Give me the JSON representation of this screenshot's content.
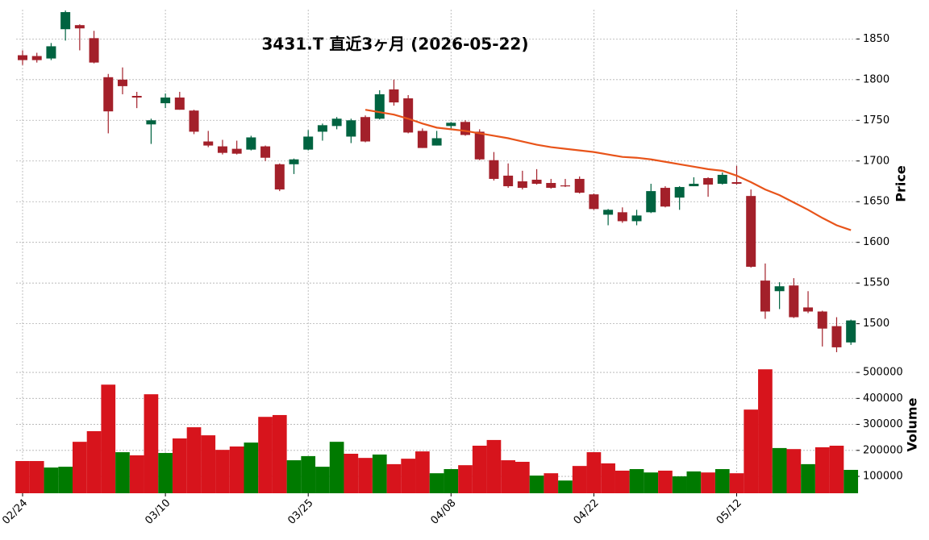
{
  "chart_data": {
    "type": "candlestick",
    "title": "3431.T  直近3ヶ月  (2026-05-22)",
    "categories": [
      "02/24",
      null,
      null,
      null,
      null,
      null,
      null,
      null,
      null,
      null,
      "03/10",
      null,
      null,
      null,
      null,
      null,
      null,
      null,
      null,
      null,
      "03/25",
      null,
      null,
      null,
      null,
      null,
      null,
      null,
      null,
      null,
      "04/08",
      null,
      null,
      null,
      null,
      null,
      null,
      null,
      null,
      null,
      "04/22",
      null,
      null,
      null,
      null,
      null,
      null,
      null,
      null,
      null,
      "05/12",
      null,
      null,
      null,
      null,
      null,
      null,
      null,
      null
    ],
    "open": [
      1830,
      1829,
      1826,
      1862,
      1867,
      1851,
      1803,
      1800,
      1780,
      1745,
      1771,
      1778,
      1762,
      1724,
      1718,
      1715,
      1714,
      1718,
      1696,
      1696,
      1714,
      1736,
      1743,
      1730,
      1754,
      1752,
      1788,
      1777,
      1737,
      1719,
      1743,
      1748,
      1736,
      1701,
      1682,
      1675,
      1677,
      1673,
      1670,
      1678,
      1659,
      1634,
      1637,
      1626,
      1637,
      1667,
      1655,
      1669,
      1679,
      1672,
      1674,
      1657,
      1553,
      1540,
      1547,
      1520,
      1515,
      1497,
      1477
    ],
    "high": [
      1836,
      1833,
      1845,
      1885,
      1868,
      1860,
      1807,
      1815,
      1785,
      1752,
      1783,
      1785,
      1763,
      1737,
      1726,
      1725,
      1731,
      1719,
      1697,
      1703,
      1738,
      1746,
      1754,
      1752,
      1756,
      1787,
      1800,
      1781,
      1740,
      1737,
      1748,
      1750,
      1739,
      1711,
      1697,
      1688,
      1690,
      1678,
      1678,
      1681,
      1660,
      1641,
      1643,
      1640,
      1672,
      1669,
      1669,
      1680,
      1680,
      1686,
      1694,
      1665,
      1574,
      1551,
      1556,
      1540,
      1516,
      1508,
      1505
    ],
    "low": [
      1818,
      1821,
      1824,
      1848,
      1836,
      1820,
      1734,
      1782,
      1765,
      1721,
      1765,
      1763,
      1733,
      1717,
      1708,
      1708,
      1713,
      1700,
      1663,
      1684,
      1713,
      1725,
      1739,
      1722,
      1723,
      1751,
      1768,
      1734,
      1716,
      1719,
      1739,
      1731,
      1701,
      1676,
      1667,
      1665,
      1671,
      1666,
      1668,
      1660,
      1640,
      1621,
      1624,
      1621,
      1636,
      1643,
      1640,
      1669,
      1656,
      1671,
      1671,
      1569,
      1506,
      1518,
      1507,
      1513,
      1472,
      1465,
      1474
    ],
    "close": [
      1824,
      1824,
      1841,
      1883,
      1863,
      1821,
      1761,
      1792,
      1778,
      1750,
      1778,
      1763,
      1736,
      1719,
      1710,
      1709,
      1729,
      1704,
      1665,
      1702,
      1730,
      1744,
      1752,
      1750,
      1724,
      1782,
      1772,
      1735,
      1716,
      1728,
      1747,
      1732,
      1702,
      1678,
      1669,
      1667,
      1672,
      1667,
      1669,
      1661,
      1641,
      1640,
      1626,
      1633,
      1663,
      1644,
      1668,
      1672,
      1671,
      1683,
      1672,
      1570,
      1515,
      1546,
      1508,
      1515,
      1494,
      1471,
      1504
    ],
    "up_color": "#006340",
    "down_color": "#a3202a",
    "ylim": [
      1462,
      1886
    ],
    "yticks": [
      1500,
      1550,
      1600,
      1650,
      1700,
      1750,
      1800,
      1850
    ],
    "ylabel": "Price",
    "grid": true,
    "moving_average": {
      "color": "#e8541a",
      "values": [
        null,
        null,
        null,
        null,
        null,
        null,
        null,
        null,
        null,
        null,
        null,
        null,
        null,
        null,
        null,
        null,
        null,
        null,
        null,
        null,
        null,
        null,
        null,
        null,
        1763,
        1760,
        1757,
        1752,
        1746,
        1741,
        1739,
        1737,
        1734,
        1731,
        1728,
        1724,
        1720,
        1717,
        1715,
        1713,
        1711,
        1708,
        1705,
        1704,
        1702,
        1699,
        1696,
        1693,
        1690,
        1688,
        1682,
        1674,
        1665,
        1658,
        1649,
        1640,
        1630,
        1621,
        1615
      ]
    },
    "volume": {
      "label": "Volume",
      "values": [
        159000,
        159000,
        134000,
        137000,
        233000,
        274000,
        453000,
        193000,
        181000,
        416000,
        190000,
        246000,
        289000,
        258000,
        202000,
        215000,
        230000,
        329000,
        336000,
        162000,
        178000,
        137000,
        233000,
        187000,
        171000,
        184000,
        147000,
        168000,
        196000,
        112000,
        128000,
        143000,
        218000,
        240000,
        162000,
        156000,
        103000,
        112000,
        84000,
        140000,
        193000,
        150000,
        122000,
        128000,
        115000,
        122000,
        100000,
        119000,
        115000,
        128000,
        112000,
        357000,
        512000,
        209000,
        205000,
        147000,
        212000,
        218000,
        125000
      ],
      "colors": [
        "#d7141c",
        "#d7141c",
        "#007a00",
        "#007a00",
        "#d7141c",
        "#d7141c",
        "#d7141c",
        "#007a00",
        "#d7141c",
        "#d7141c",
        "#007a00",
        "#d7141c",
        "#d7141c",
        "#d7141c",
        "#d7141c",
        "#d7141c",
        "#007a00",
        "#d7141c",
        "#d7141c",
        "#007a00",
        "#007a00",
        "#007a00",
        "#007a00",
        "#d7141c",
        "#d7141c",
        "#007a00",
        "#d7141c",
        "#d7141c",
        "#d7141c",
        "#007a00",
        "#007a00",
        "#d7141c",
        "#d7141c",
        "#d7141c",
        "#d7141c",
        "#d7141c",
        "#007a00",
        "#d7141c",
        "#007a00",
        "#d7141c",
        "#d7141c",
        "#d7141c",
        "#d7141c",
        "#007a00",
        "#007a00",
        "#d7141c",
        "#007a00",
        "#007a00",
        "#d7141c",
        "#007a00",
        "#d7141c",
        "#d7141c",
        "#d7141c",
        "#007a00",
        "#d7141c",
        "#007a00",
        "#d7141c",
        "#d7141c",
        "#007a00"
      ],
      "ylim": [
        35000,
        553000
      ],
      "yticks": [
        100000,
        200000,
        300000,
        400000,
        500000
      ]
    }
  }
}
